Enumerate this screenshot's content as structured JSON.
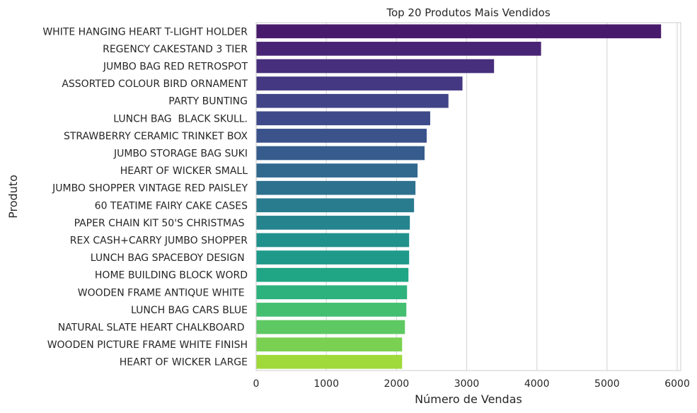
{
  "chart_data": {
    "type": "bar",
    "orientation": "horizontal",
    "title": "Top 20 Produtos Mais Vendidos",
    "xlabel": "Número de Vendas",
    "ylabel": "Produto",
    "xlim": [
      0,
      6050
    ],
    "xticks": [
      0,
      1000,
      2000,
      3000,
      4000,
      5000,
      6000
    ],
    "grid": "x",
    "palette": "viridis",
    "categories": [
      "WHITE HANGING HEART T-LIGHT HOLDER",
      "REGENCY CAKESTAND 3 TIER",
      "JUMBO BAG RED RETROSPOT",
      "ASSORTED COLOUR BIRD ORNAMENT",
      "PARTY BUNTING",
      "LUNCH BAG  BLACK SKULL.",
      "STRAWBERRY CERAMIC TRINKET BOX",
      "JUMBO STORAGE BAG SUKI",
      "HEART OF WICKER SMALL",
      "JUMBO SHOPPER VINTAGE RED PAISLEY",
      "60 TEATIME FAIRY CAKE CASES",
      "PAPER CHAIN KIT 50'S CHRISTMAS ",
      "REX CASH+CARRY JUMBO SHOPPER",
      "LUNCH BAG SPACEBOY DESIGN ",
      "HOME BUILDING BLOCK WORD",
      "WOODEN FRAME ANTIQUE WHITE ",
      "LUNCH BAG CARS BLUE",
      "NATURAL SLATE HEART CHALKBOARD ",
      "WOODEN PICTURE FRAME WHITE FINISH",
      "HEART OF WICKER LARGE"
    ],
    "values": [
      5770,
      4060,
      3390,
      2940,
      2740,
      2480,
      2430,
      2400,
      2300,
      2270,
      2250,
      2190,
      2180,
      2180,
      2170,
      2150,
      2140,
      2120,
      2080,
      2080
    ],
    "colors": [
      "#481a6c",
      "#482475",
      "#472f7d",
      "#453882",
      "#414487",
      "#3e4a89",
      "#3b528b",
      "#365c8d",
      "#31688e",
      "#2d718e",
      "#297b8e",
      "#25848e",
      "#21918c",
      "#1f9a8a",
      "#21a685",
      "#2db27d",
      "#44bf70",
      "#5ec962",
      "#7ad151",
      "#9fda3a"
    ]
  }
}
